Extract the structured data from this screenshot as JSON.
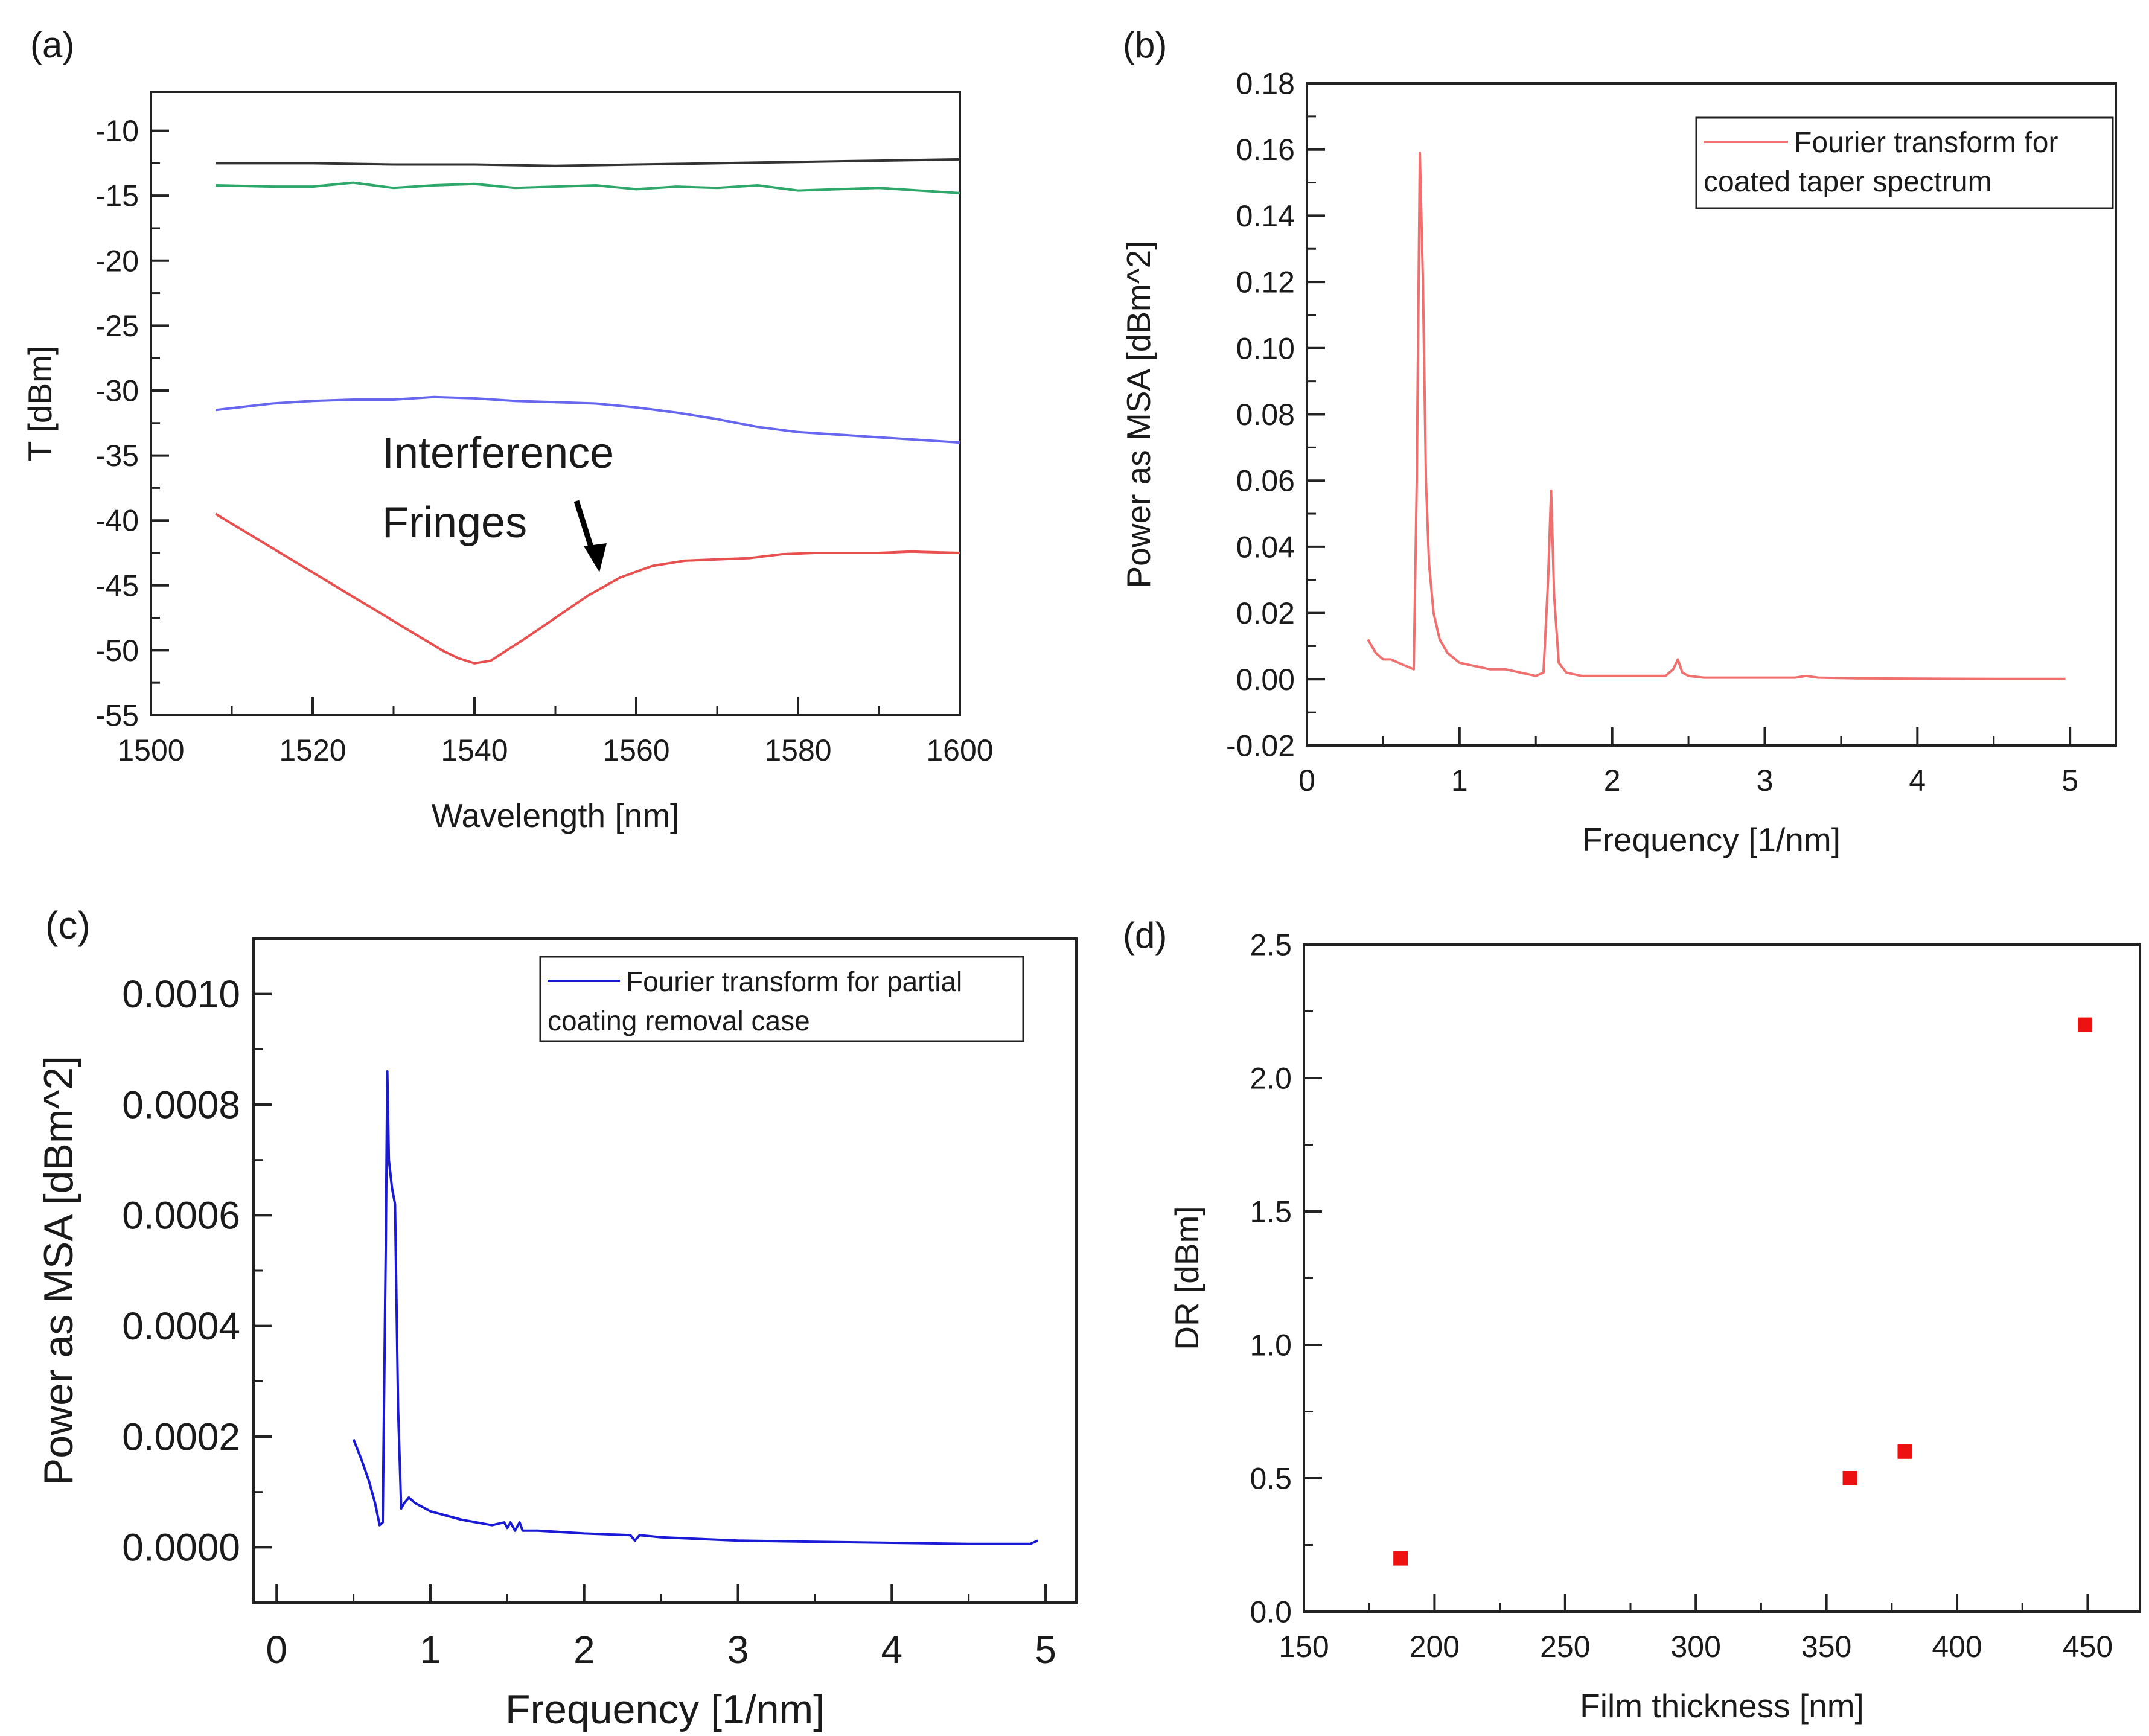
{
  "panels": {
    "a": {
      "label": "(a)"
    },
    "b": {
      "label": "(b)"
    },
    "c": {
      "label": "(c)"
    },
    "d": {
      "label": "(d)"
    }
  },
  "annotation": {
    "line1": "Interference",
    "line2": "Fringes"
  },
  "chart_data": [
    {
      "id": "a",
      "type": "line",
      "xlabel": "Wavelength [nm]",
      "ylabel": "T [dBm]",
      "xlim": [
        1500,
        1600
      ],
      "ylim": [
        -55,
        -7
      ],
      "x_ticks": [
        1500,
        1520,
        1540,
        1560,
        1580,
        1600
      ],
      "y_ticks": [
        -55,
        -50,
        -45,
        -40,
        -35,
        -30,
        -25,
        -20,
        -15,
        -10
      ],
      "series": [
        {
          "color": "#333333",
          "x": [
            1508,
            1520,
            1530,
            1540,
            1550,
            1560,
            1570,
            1580,
            1590,
            1600
          ],
          "y": [
            -12.5,
            -12.5,
            -12.6,
            -12.6,
            -12.7,
            -12.6,
            -12.5,
            -12.4,
            -12.3,
            -12.2
          ]
        },
        {
          "color": "#2ea86a",
          "x": [
            1508,
            1515,
            1520,
            1525,
            1530,
            1535,
            1540,
            1545,
            1550,
            1555,
            1560,
            1565,
            1570,
            1575,
            1580,
            1585,
            1590,
            1595,
            1600
          ],
          "y": [
            -14.2,
            -14.3,
            -14.3,
            -14.0,
            -14.4,
            -14.2,
            -14.1,
            -14.4,
            -14.3,
            -14.2,
            -14.5,
            -14.3,
            -14.4,
            -14.2,
            -14.6,
            -14.5,
            -14.4,
            -14.6,
            -14.8
          ]
        },
        {
          "color": "#6666ee",
          "x": [
            1508,
            1515,
            1520,
            1525,
            1530,
            1535,
            1540,
            1545,
            1550,
            1555,
            1560,
            1565,
            1570,
            1575,
            1580,
            1585,
            1590,
            1595,
            1600
          ],
          "y": [
            -31.5,
            -31.0,
            -30.8,
            -30.7,
            -30.7,
            -30.5,
            -30.6,
            -30.8,
            -30.9,
            -31.0,
            -31.3,
            -31.7,
            -32.2,
            -32.8,
            -33.2,
            -33.4,
            -33.6,
            -33.8,
            -34.0
          ]
        },
        {
          "color": "#e8504f",
          "x": [
            1508,
            1512,
            1516,
            1520,
            1524,
            1528,
            1532,
            1536,
            1538,
            1540,
            1542,
            1546,
            1550,
            1554,
            1558,
            1562,
            1566,
            1570,
            1574,
            1578,
            1582,
            1586,
            1590,
            1594,
            1600
          ],
          "y": [
            -39.5,
            -41.0,
            -42.5,
            -44.0,
            -45.5,
            -47.0,
            -48.5,
            -50.0,
            -50.6,
            -51.0,
            -50.8,
            -49.2,
            -47.5,
            -45.8,
            -44.4,
            -43.5,
            -43.1,
            -43.0,
            -42.9,
            -42.6,
            -42.5,
            -42.5,
            -42.5,
            -42.4,
            -42.5
          ]
        }
      ]
    },
    {
      "id": "b",
      "type": "line",
      "xlabel": "Frequency [1/nm]",
      "ylabel": "Power as MSA [dBm^2]",
      "xlim": [
        0,
        5.3
      ],
      "ylim": [
        -0.02,
        0.18
      ],
      "x_ticks": [
        0,
        1,
        2,
        3,
        4,
        5
      ],
      "y_ticks": [
        -0.02,
        0.0,
        0.02,
        0.04,
        0.06,
        0.08,
        0.1,
        0.12,
        0.14,
        0.16,
        0.18
      ],
      "y_tick_labels": [
        "-0.02",
        "0.00",
        "0.02",
        "0.04",
        "0.06",
        "0.08",
        "0.10",
        "0.12",
        "0.14",
        "0.16",
        "0.18"
      ],
      "legend": "Fourier transform for coated taper spectrum",
      "legend_lines": [
        "Fourier transform for",
        "coated taper spectrum"
      ],
      "legend_position": "top-right",
      "series": [
        {
          "name": "Fourier transform for coated taper spectrum",
          "color": "#f07070",
          "x": [
            0.4,
            0.45,
            0.5,
            0.55,
            0.6,
            0.65,
            0.7,
            0.72,
            0.74,
            0.76,
            0.78,
            0.8,
            0.83,
            0.87,
            0.92,
            1.0,
            1.1,
            1.2,
            1.3,
            1.4,
            1.5,
            1.55,
            1.58,
            1.6,
            1.62,
            1.65,
            1.7,
            1.8,
            2.0,
            2.2,
            2.35,
            2.4,
            2.43,
            2.46,
            2.5,
            2.6,
            3.0,
            3.2,
            3.27,
            3.35,
            3.6,
            4.0,
            4.5,
            4.97
          ],
          "y": [
            0.012,
            0.008,
            0.006,
            0.006,
            0.005,
            0.004,
            0.003,
            0.06,
            0.159,
            0.12,
            0.06,
            0.035,
            0.02,
            0.012,
            0.008,
            0.005,
            0.004,
            0.003,
            0.003,
            0.002,
            0.001,
            0.002,
            0.03,
            0.057,
            0.025,
            0.005,
            0.002,
            0.001,
            0.001,
            0.001,
            0.001,
            0.003,
            0.006,
            0.002,
            0.001,
            0.0005,
            0.0005,
            0.0005,
            0.001,
            0.0005,
            0.0003,
            0.0002,
            0.0001,
            0.0001
          ]
        }
      ]
    },
    {
      "id": "c",
      "type": "line",
      "xlabel": "Frequency [1/nm]",
      "ylabel": "Power as MSA [dBm^2]",
      "xlim": [
        -0.15,
        5.2
      ],
      "ylim": [
        -0.0001,
        0.0011
      ],
      "x_ticks": [
        0,
        1,
        2,
        3,
        4,
        5
      ],
      "y_ticks": [
        0.0,
        0.0002,
        0.0004,
        0.0006,
        0.0008,
        0.001
      ],
      "y_tick_labels": [
        "0.0000",
        "0.0002",
        "0.0004",
        "0.0006",
        "0.0008",
        "0.0010"
      ],
      "legend": "Fourier transform for partial coating removal case",
      "legend_lines": [
        "Fourier transform for partial",
        "coating removal case"
      ],
      "legend_position": "top-right",
      "series": [
        {
          "name": "Fourier transform for partial coating removal case",
          "color": "#1a1ad6",
          "x": [
            0.5,
            0.55,
            0.6,
            0.64,
            0.67,
            0.69,
            0.71,
            0.72,
            0.73,
            0.75,
            0.77,
            0.79,
            0.81,
            0.83,
            0.86,
            0.9,
            1.0,
            1.2,
            1.4,
            1.48,
            1.5,
            1.52,
            1.55,
            1.58,
            1.6,
            1.7,
            2.0,
            2.3,
            2.33,
            2.36,
            2.5,
            3.0,
            3.5,
            4.0,
            4.5,
            4.9,
            4.95
          ],
          "y": [
            0.000195,
            0.00016,
            0.00012,
            8e-05,
            4e-05,
            4.5e-05,
            0.00055,
            0.00086,
            0.0007,
            0.00065,
            0.00062,
            0.00025,
            7e-05,
            8e-05,
            9e-05,
            8e-05,
            6.5e-05,
            5e-05,
            4e-05,
            4.5e-05,
            3.5e-05,
            4.5e-05,
            3e-05,
            4.5e-05,
            3e-05,
            3e-05,
            2.5e-05,
            2.2e-05,
            1.2e-05,
            2.2e-05,
            1.8e-05,
            1.2e-05,
            1e-05,
            8e-06,
            6e-06,
            6e-06,
            1.2e-05
          ]
        }
      ]
    },
    {
      "id": "d",
      "type": "scatter",
      "xlabel": "Film thickness [nm]",
      "ylabel": "DR [dBm]",
      "xlim": [
        150,
        470
      ],
      "ylim": [
        0,
        2.5
      ],
      "x_ticks": [
        150,
        200,
        250,
        300,
        350,
        400,
        450
      ],
      "y_ticks": [
        0.0,
        0.5,
        1.0,
        1.5,
        2.0,
        2.5
      ],
      "y_tick_labels": [
        "0.0",
        "0.5",
        "1.0",
        "1.5",
        "2.0",
        "2.5"
      ],
      "series": [
        {
          "color": "#ee1111",
          "x": [
            187,
            359,
            380,
            449
          ],
          "y": [
            0.2,
            0.5,
            0.6,
            2.2
          ]
        }
      ]
    }
  ]
}
